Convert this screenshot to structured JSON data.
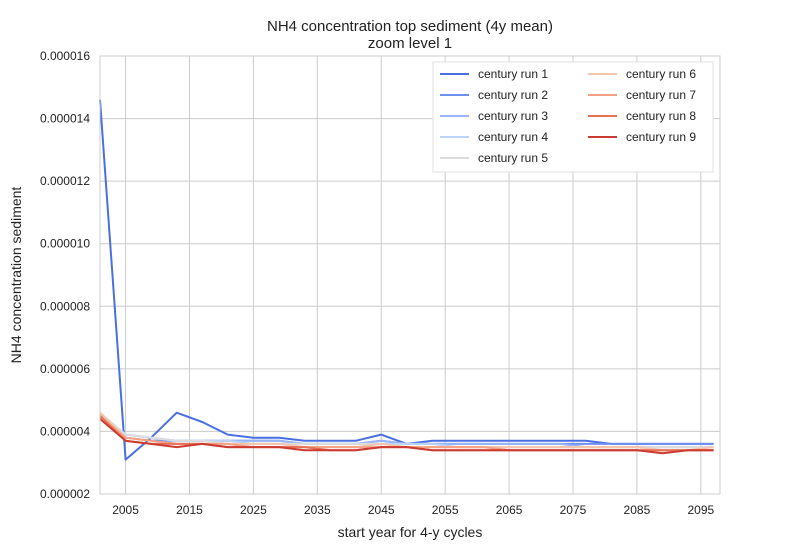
{
  "chart_data": {
    "type": "line",
    "title": "NH4 concentration top sediment (4y mean)",
    "subtitle": "zoom level 1",
    "xlabel": "start year for 4-y cycles",
    "ylabel": "NH4 concentration sediment",
    "xlim": [
      2001,
      2098
    ],
    "ylim": [
      2e-06,
      1.6e-05
    ],
    "xticks": [
      2005,
      2015,
      2025,
      2035,
      2045,
      2055,
      2065,
      2075,
      2085,
      2095
    ],
    "xtick_labels": [
      "2005",
      "2015",
      "2025",
      "2035",
      "2045",
      "2055",
      "2065",
      "2075",
      "2085",
      "2095"
    ],
    "yticks": [
      2e-06,
      4e-06,
      6e-06,
      8e-06,
      1e-05,
      1.2e-05,
      1.4e-05,
      1.6e-05
    ],
    "ytick_labels": [
      "0.000002",
      "0.000004",
      "0.000006",
      "0.000008",
      "0.000010",
      "0.000012",
      "0.000014",
      "0.000016"
    ],
    "grid": true,
    "legend_position": "top-right",
    "legend_columns": 2,
    "x": [
      2001,
      2005,
      2009,
      2013,
      2017,
      2021,
      2025,
      2029,
      2033,
      2037,
      2041,
      2045,
      2049,
      2053,
      2057,
      2061,
      2065,
      2069,
      2073,
      2077,
      2081,
      2085,
      2089,
      2093,
      2097
    ],
    "series": [
      {
        "name": "century run 1",
        "color": "#4a6fe3",
        "values": [
          1.46e-05,
          3.1e-06,
          3.8e-06,
          4.6e-06,
          4.3e-06,
          3.9e-06,
          3.8e-06,
          3.8e-06,
          3.7e-06,
          3.7e-06,
          3.7e-06,
          3.9e-06,
          3.6e-06,
          3.7e-06,
          3.7e-06,
          3.7e-06,
          3.7e-06,
          3.7e-06,
          3.7e-06,
          3.7e-06,
          3.6e-06,
          3.6e-06,
          3.6e-06,
          3.6e-06,
          3.6e-06
        ]
      },
      {
        "name": "century run 2",
        "color": "#6d8ff0",
        "values": [
          4.5e-06,
          3.8e-06,
          3.7e-06,
          3.7e-06,
          3.7e-06,
          3.7e-06,
          3.7e-06,
          3.7e-06,
          3.6e-06,
          3.6e-06,
          3.6e-06,
          3.7e-06,
          3.6e-06,
          3.6e-06,
          3.6e-06,
          3.6e-06,
          3.6e-06,
          3.6e-06,
          3.6e-06,
          3.6e-06,
          3.6e-06,
          3.6e-06,
          3.6e-06,
          3.6e-06,
          3.6e-06
        ]
      },
      {
        "name": "century run 3",
        "color": "#98b5f8",
        "values": [
          4.5e-06,
          3.9e-06,
          3.8e-06,
          3.7e-06,
          3.7e-06,
          3.7e-06,
          3.7e-06,
          3.7e-06,
          3.6e-06,
          3.6e-06,
          3.6e-06,
          3.7e-06,
          3.6e-06,
          3.6e-06,
          3.6e-06,
          3.6e-06,
          3.6e-06,
          3.6e-06,
          3.6e-06,
          3.5e-06,
          3.5e-06,
          3.5e-06,
          3.5e-06,
          3.5e-06,
          3.5e-06
        ]
      },
      {
        "name": "century run 4",
        "color": "#bcd2f7",
        "values": [
          4.6e-06,
          3.9e-06,
          3.8e-06,
          3.7e-06,
          3.7e-06,
          3.7e-06,
          3.6e-06,
          3.6e-06,
          3.6e-06,
          3.6e-06,
          3.6e-06,
          3.6e-06,
          3.6e-06,
          3.6e-06,
          3.5e-06,
          3.5e-06,
          3.5e-06,
          3.5e-06,
          3.5e-06,
          3.5e-06,
          3.5e-06,
          3.5e-06,
          3.5e-06,
          3.5e-06,
          3.5e-06
        ]
      },
      {
        "name": "century run 5",
        "color": "#dcdcdc",
        "values": [
          4.6e-06,
          3.9e-06,
          3.8e-06,
          3.7e-06,
          3.7e-06,
          3.6e-06,
          3.6e-06,
          3.6e-06,
          3.6e-06,
          3.6e-06,
          3.6e-06,
          3.6e-06,
          3.5e-06,
          3.5e-06,
          3.5e-06,
          3.5e-06,
          3.5e-06,
          3.5e-06,
          3.5e-06,
          3.5e-06,
          3.5e-06,
          3.5e-06,
          3.5e-06,
          3.5e-06,
          3.5e-06
        ]
      },
      {
        "name": "century run 6",
        "color": "#f5c4ac",
        "values": [
          4.6e-06,
          3.8e-06,
          3.7e-06,
          3.6e-06,
          3.6e-06,
          3.6e-06,
          3.6e-06,
          3.6e-06,
          3.5e-06,
          3.5e-06,
          3.5e-06,
          3.6e-06,
          3.5e-06,
          3.5e-06,
          3.5e-06,
          3.5e-06,
          3.5e-06,
          3.5e-06,
          3.5e-06,
          3.5e-06,
          3.5e-06,
          3.5e-06,
          3.4e-06,
          3.4e-06,
          3.5e-06
        ]
      },
      {
        "name": "century run 7",
        "color": "#f4a283",
        "values": [
          4.5e-06,
          3.8e-06,
          3.7e-06,
          3.6e-06,
          3.6e-06,
          3.6e-06,
          3.5e-06,
          3.5e-06,
          3.5e-06,
          3.5e-06,
          3.5e-06,
          3.5e-06,
          3.5e-06,
          3.5e-06,
          3.5e-06,
          3.5e-06,
          3.4e-06,
          3.4e-06,
          3.4e-06,
          3.4e-06,
          3.4e-06,
          3.4e-06,
          3.4e-06,
          3.4e-06,
          3.4e-06
        ]
      },
      {
        "name": "century run 8",
        "color": "#e57257",
        "values": [
          4.5e-06,
          3.7e-06,
          3.6e-06,
          3.6e-06,
          3.6e-06,
          3.5e-06,
          3.5e-06,
          3.5e-06,
          3.5e-06,
          3.4e-06,
          3.4e-06,
          3.5e-06,
          3.5e-06,
          3.4e-06,
          3.4e-06,
          3.4e-06,
          3.4e-06,
          3.4e-06,
          3.4e-06,
          3.4e-06,
          3.4e-06,
          3.4e-06,
          3.4e-06,
          3.4e-06,
          3.4e-06
        ]
      },
      {
        "name": "century run 9",
        "color": "#cc3b31",
        "values": [
          4.4e-06,
          3.7e-06,
          3.6e-06,
          3.5e-06,
          3.6e-06,
          3.5e-06,
          3.5e-06,
          3.5e-06,
          3.4e-06,
          3.4e-06,
          3.4e-06,
          3.5e-06,
          3.5e-06,
          3.4e-06,
          3.4e-06,
          3.4e-06,
          3.4e-06,
          3.4e-06,
          3.4e-06,
          3.4e-06,
          3.4e-06,
          3.4e-06,
          3.3e-06,
          3.4e-06,
          3.4e-06
        ]
      }
    ]
  }
}
